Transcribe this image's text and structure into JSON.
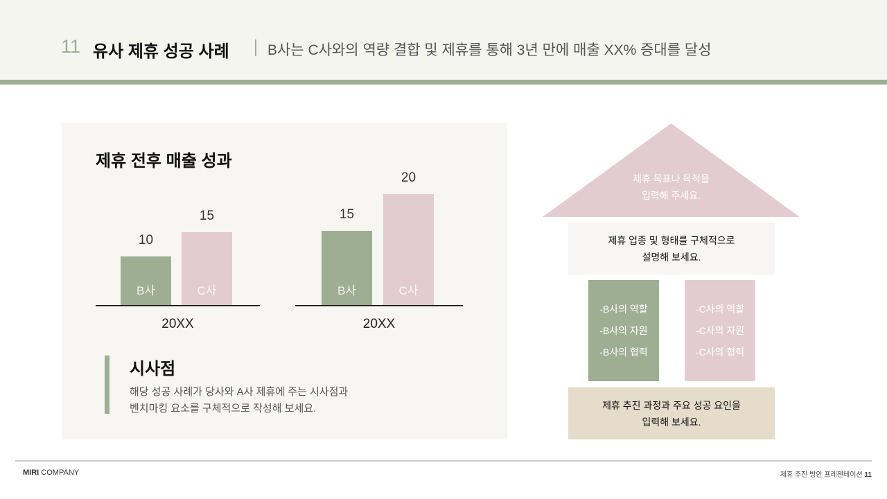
{
  "header": {
    "number": "11",
    "title": "유사 제휴 성공 사례",
    "subtitle": "B사는 C사와의 역량 결합 및 제휴를 통해 3년 만에 매출 XX% 증대를 달성"
  },
  "chart_data": [
    {
      "type": "bar",
      "title": "제휴 전후 매출 성과",
      "categories": [
        "B사",
        "C사"
      ],
      "xlabel": "20XX",
      "values": [
        10,
        15
      ],
      "ylim": [
        0,
        15
      ]
    },
    {
      "type": "bar",
      "categories": [
        "B사",
        "C사"
      ],
      "xlabel": "20XX",
      "values": [
        15,
        20
      ],
      "ylim": [
        5,
        20
      ]
    }
  ],
  "colors": {
    "green": "#9eae93",
    "pink": "#e3ccd1",
    "beige": "#e5dccb"
  },
  "insight": {
    "title": "시사점",
    "line1": "해당 성공 사례가 당사와 A사 제휴에 주는 시사점과",
    "line2": "벤치마킹 요소를 구체적으로 작성해 보세요."
  },
  "house": {
    "roof": [
      "제휴 목표나 목적을",
      "입력해 주세요."
    ],
    "beam": [
      "제휴 업종 및 형태를 구체적으로",
      "설명해 보세요."
    ],
    "left": [
      "-B사의 역할",
      "-B사의 자원",
      "-B사의 협력"
    ],
    "right": [
      "-C사의 역할",
      "-C사의 자원",
      "-C사의 협력"
    ],
    "base": [
      "제휴 추진 과정과 주요 성공 요인을",
      "입력해 보세요."
    ]
  },
  "footer": {
    "brand_bold": "MIRI",
    "brand": "COMPANY",
    "right": "제휴 추진 방안 프레젠테이션",
    "page": "11"
  }
}
